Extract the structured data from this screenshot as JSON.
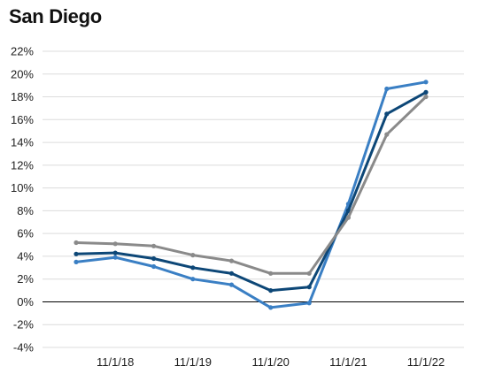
{
  "chart_data": {
    "type": "line",
    "title": "San Diego",
    "xlabel": "",
    "ylabel": "",
    "x": [
      "2018-05-01",
      "2018-11-01",
      "2019-05-01",
      "2019-11-01",
      "2020-05-01",
      "2020-11-01",
      "2021-05-01",
      "2021-11-01",
      "2022-05-01",
      "2022-11-01"
    ],
    "x_tick_labels": [
      "11/1/18",
      "11/1/19",
      "11/1/20",
      "11/1/21",
      "11/1/22"
    ],
    "y_tick_labels": [
      "22%",
      "20%",
      "18%",
      "16%",
      "14%",
      "12%",
      "10%",
      "8%",
      "6%",
      "4%",
      "2%",
      "0%",
      "-2%",
      "-4%"
    ],
    "ylim": [
      -4,
      22
    ],
    "grid": true,
    "series": [
      {
        "color": "#3a7fc4",
        "values": [
          3.5,
          3.9,
          3.1,
          2.0,
          1.5,
          -0.5,
          -0.1,
          8.6,
          18.7,
          19.3
        ]
      },
      {
        "color": "#0d4777",
        "values": [
          4.2,
          4.3,
          3.8,
          3.0,
          2.5,
          1.0,
          1.3,
          8.0,
          16.5,
          18.4
        ]
      },
      {
        "color": "#8a8a8a",
        "values": [
          5.2,
          5.1,
          4.9,
          4.1,
          3.6,
          2.5,
          2.5,
          7.4,
          14.7,
          18.0
        ]
      }
    ]
  }
}
